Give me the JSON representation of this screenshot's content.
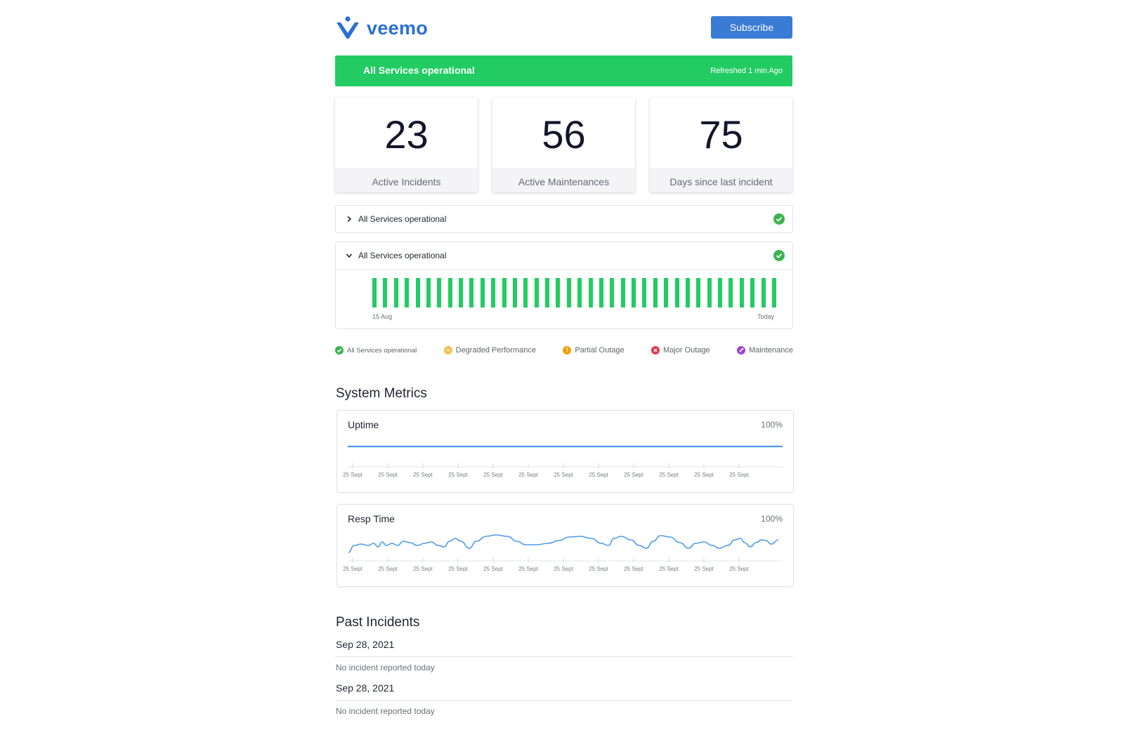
{
  "header": {
    "brand": "veemo",
    "subscribe_label": "Subscribe",
    "brand_color": "#2a6fd6"
  },
  "banner": {
    "title": "All Services operational",
    "refreshed": "Refreshed 1 min Ago",
    "color": "#22cc62"
  },
  "stats": [
    {
      "value": "23",
      "label": "Active Incidents"
    },
    {
      "value": "56",
      "label": "Active Maintenances"
    },
    {
      "value": "75",
      "label": "Days since last incident"
    }
  ],
  "services": [
    {
      "name": "All Services operational",
      "expanded": false,
      "status_icon": "check-circle-icon"
    },
    {
      "name": "All Services operational",
      "expanded": true,
      "status_icon": "check-circle-icon",
      "bar_count": 38,
      "start_label": "15 Aug",
      "end_label": "Today"
    }
  ],
  "legend": [
    {
      "label": "All Services operational",
      "color": "#3db351",
      "icon": "check-circle-icon"
    },
    {
      "label": "Degraded Performance",
      "color": "#f2c14e",
      "icon": "minus-circle-icon"
    },
    {
      "label": "Partial Outage",
      "color": "#f0a20b",
      "icon": "exclamation-circle-icon"
    },
    {
      "label": "Major Outage",
      "color": "#e53950",
      "icon": "x-circle-icon"
    },
    {
      "label": "Maintenance",
      "color": "#9b45d6",
      "icon": "wrench-circle-icon"
    }
  ],
  "metrics_title": "System Metrics",
  "metrics": [
    {
      "title": "Uptime",
      "value": "100%",
      "x_labels": [
        "25 Sept",
        "25 Sept",
        "25 Sept",
        "25 Sept",
        "25 Sept",
        "25 Sept",
        "25 Sept",
        "25 Sept",
        "25 Sept",
        "25 Sept",
        "25 Sept",
        "25 Sept"
      ]
    },
    {
      "title": "Resp Time",
      "value": "100%",
      "x_labels": [
        "25 Sept",
        "25 Sept",
        "25 Sept",
        "25 Sept",
        "25 Sept",
        "25 Sept",
        "25 Sept",
        "25 Sept",
        "25 Sept",
        "25 Sept",
        "25 Sept",
        "25 Sept"
      ]
    }
  ],
  "incidents_title": "Past Incidents",
  "incidents": [
    {
      "date": "Sep 28, 2021",
      "text": "No incident reported today"
    },
    {
      "date": "Sep 28, 2021",
      "text": "No incident reported today"
    }
  ],
  "chart_line_color": "#4d9be8"
}
